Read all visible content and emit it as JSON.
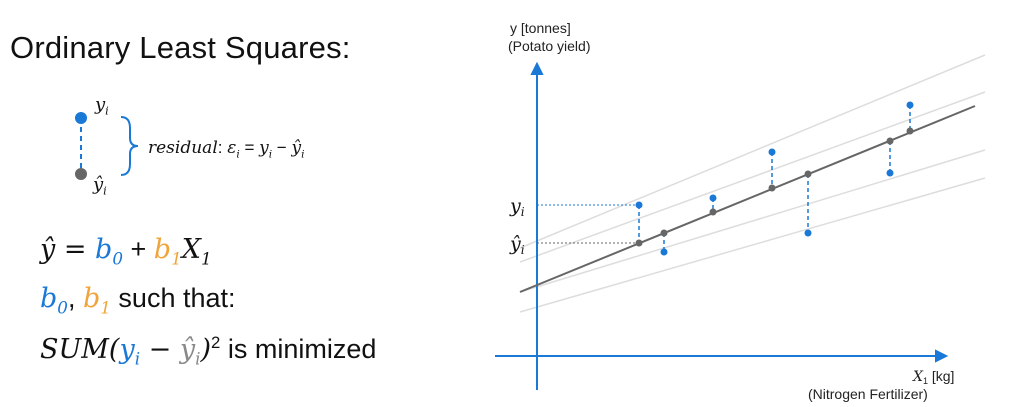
{
  "title": "Ordinary Least Squares:",
  "legend": {
    "y_label": "y",
    "y_sub": "i",
    "yhat_label": "ŷ",
    "yhat_sub": "i",
    "residual_word": "residual",
    "residual_eq": "ε",
    "residual_eq_sub": "i",
    "residual_rhs_y": "y",
    "residual_rhs_yhat": "ŷ"
  },
  "equations": {
    "eq1_lhs": "ŷ = ",
    "b0": "b",
    "b0_sub": "0",
    "plus": " + ",
    "b1": "b",
    "b1_sub": "1",
    "x": "X",
    "x_sub": "1",
    "eq2_rest": " such that:",
    "sum": "SUM(",
    "sum_close": ")",
    "sum_power": "2",
    "minimized": " is minimized"
  },
  "plot": {
    "y_axis_label_1": "y [tonnes]",
    "y_axis_label_2": "(Potato yield)",
    "x_axis_label_var": "X",
    "x_axis_label_sub": "1",
    "x_axis_label_unit": " [kg]",
    "x_axis_label_2": "(Nitrogen Fertilizer)",
    "tick_y": "y",
    "tick_y_sub": "i",
    "tick_yhat": "ŷ",
    "tick_yhat_sub": "i"
  },
  "colors": {
    "accent_blue": "#1a78d6",
    "accent_orange": "#f0a43a",
    "fit_line": "#666666",
    "alt_lines": "#dddddd"
  }
}
